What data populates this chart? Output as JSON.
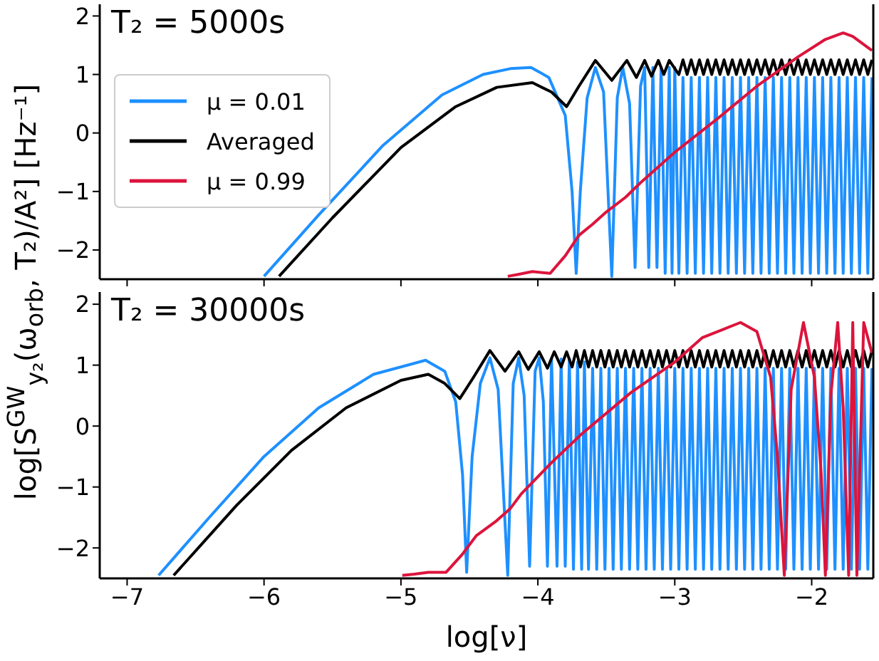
{
  "chart_data": [
    {
      "type": "line",
      "annotations": [
        "T₂ = 5000s"
      ],
      "ylabel": "log[S$^{GW}$$_{y₂}$(ω$_{orb}$, T₂)/A²] [Hz⁻¹]",
      "xlim": [
        -7.2,
        -1.55
      ],
      "ylim": [
        -2.5,
        2.2
      ],
      "xticks": [
        -7,
        -6,
        -5,
        -4,
        -3,
        -2
      ],
      "yticks": [
        -2,
        -1,
        0,
        1,
        2
      ],
      "tick_labels": "y",
      "legend": "left",
      "marker": "none",
      "line_style": "solid",
      "series": [
        {
          "name": "μ = 0.01",
          "color": "#1e90ff",
          "x": [
            -6.0,
            -5.6,
            -5.13,
            -4.7,
            -4.4,
            -4.2,
            -4.05,
            -3.92,
            -3.8,
            -3.75,
            -3.72,
            -3.69,
            -3.64,
            -3.58,
            -3.52,
            -3.46,
            -3.42,
            -3.38,
            -3.33,
            -3.29,
            -3.25,
            -3.22,
            -3.19,
            -3.16,
            -3.13,
            -3.1,
            -3.07,
            -3.04,
            -3.02,
            -3.0,
            -2.97,
            -2.94,
            -2.91,
            -2.88,
            -2.85,
            -2.82,
            -2.79,
            -2.76,
            -2.73,
            -2.7,
            -2.67,
            -2.64,
            -2.61,
            -2.58,
            -2.55,
            -2.52,
            -2.49,
            -2.46,
            -2.43,
            -2.4,
            -2.37,
            -2.34,
            -2.31,
            -2.28,
            -2.25,
            -2.22,
            -2.19,
            -2.16,
            -2.13,
            -2.1,
            -2.07,
            -2.04,
            -2.01,
            -1.98,
            -1.95,
            -1.92,
            -1.89,
            -1.86,
            -1.83,
            -1.8,
            -1.77,
            -1.74,
            -1.71,
            -1.68,
            -1.65,
            -1.62,
            -1.59,
            -1.56
          ],
          "values": [
            -2.45,
            -1.4,
            -0.21,
            0.65,
            1.0,
            1.1,
            1.12,
            0.95,
            0.3,
            -1.0,
            -2.4,
            -1.0,
            0.6,
            1.12,
            0.7,
            -2.45,
            0.6,
            1.12,
            0.5,
            -2.3,
            0.8,
            1.12,
            -2.3,
            1.12,
            -2.3,
            1.12,
            -2.4,
            1.12,
            -2.4,
            1.12,
            -2.4,
            0.95,
            -2.4,
            0.95,
            -2.4,
            0.95,
            -2.4,
            0.95,
            -2.4,
            0.95,
            -2.4,
            0.95,
            -2.4,
            0.95,
            -2.4,
            0.95,
            -2.4,
            0.95,
            -2.4,
            0.95,
            -2.4,
            0.95,
            -2.4,
            0.95,
            -2.4,
            0.95,
            -2.4,
            0.95,
            -2.4,
            0.95,
            -2.4,
            0.95,
            -2.4,
            0.95,
            -2.4,
            0.95,
            -2.4,
            0.95,
            -2.4,
            0.95,
            -2.4,
            0.95,
            -2.4,
            0.95,
            -2.4,
            0.95,
            -2.4,
            0.95
          ]
        },
        {
          "name": "Averaged",
          "color": "#000000",
          "x": [
            -5.89,
            -5.5,
            -5.0,
            -4.6,
            -4.3,
            -4.04,
            -3.9,
            -3.79,
            -3.7,
            -3.58,
            -3.46,
            -3.35,
            -3.28,
            -3.22,
            -3.17,
            -3.12,
            -3.08,
            -3.04,
            -2.97,
            -2.94,
            -2.91,
            -2.88,
            -2.85,
            -2.82,
            -2.79,
            -2.76,
            -2.73,
            -2.7,
            -2.67,
            -2.64,
            -2.61,
            -2.58,
            -2.55,
            -2.52,
            -2.49,
            -2.46,
            -2.43,
            -2.4,
            -2.37,
            -2.34,
            -2.31,
            -2.28,
            -2.25,
            -2.22,
            -2.19,
            -2.16,
            -2.13,
            -2.1,
            -2.07,
            -2.04,
            -2.01,
            -1.98,
            -1.95,
            -1.92,
            -1.89,
            -1.86,
            -1.83,
            -1.8,
            -1.77,
            -1.74,
            -1.71,
            -1.68,
            -1.65,
            -1.62,
            -1.59,
            -1.56
          ],
          "values": [
            -2.45,
            -1.45,
            -0.25,
            0.45,
            0.78,
            0.86,
            0.7,
            0.45,
            0.8,
            1.24,
            0.9,
            1.24,
            0.95,
            1.24,
            0.97,
            1.24,
            1.0,
            1.24,
            1.0,
            1.25,
            1.0,
            1.25,
            1.0,
            1.25,
            1.0,
            1.25,
            1.0,
            1.25,
            1.0,
            1.25,
            1.0,
            1.25,
            1.0,
            1.25,
            1.0,
            1.25,
            1.0,
            1.25,
            1.0,
            1.25,
            1.0,
            1.25,
            1.0,
            1.25,
            1.0,
            1.25,
            1.0,
            1.25,
            1.0,
            1.25,
            1.0,
            1.25,
            1.0,
            1.25,
            1.0,
            1.25,
            1.0,
            1.25,
            1.0,
            1.25,
            1.0,
            1.25,
            1.0,
            1.25,
            1.0,
            1.25
          ]
        },
        {
          "name": "μ = 0.99",
          "color": "#dc143c",
          "x": [
            -4.22,
            -4.15,
            -4.04,
            -3.91,
            -3.8,
            -3.7,
            -3.6,
            -3.5,
            -3.36,
            -3.25,
            -3.12,
            -3.0,
            -2.68,
            -2.4,
            -2.1,
            -1.9,
            -1.77,
            -1.7,
            -1.56
          ],
          "values": [
            -2.45,
            -2.42,
            -2.37,
            -2.4,
            -2.1,
            -1.75,
            -1.56,
            -1.35,
            -1.1,
            -0.85,
            -0.58,
            -0.33,
            0.26,
            0.8,
            1.3,
            1.6,
            1.71,
            1.65,
            1.41
          ]
        }
      ]
    },
    {
      "type": "line",
      "annotations": [
        "T₂ = 30000s"
      ],
      "xlabel": "log[ν]",
      "xlim": [
        -7.2,
        -1.55
      ],
      "ylim": [
        -2.5,
        2.2
      ],
      "xticks": [
        -7,
        -6,
        -5,
        -4,
        -3,
        -2
      ],
      "yticks": [
        -2,
        -1,
        0,
        1,
        2
      ],
      "marker": "none",
      "line_style": "solid",
      "series": [
        {
          "color": "#1e90ff",
          "x": [
            -6.77,
            -6.4,
            -6.0,
            -5.6,
            -5.2,
            -4.82,
            -4.68,
            -4.6,
            -4.55,
            -4.52,
            -4.48,
            -4.42,
            -4.35,
            -4.29,
            -4.22,
            -4.18,
            -4.14,
            -4.1,
            -4.06,
            -4.02,
            -3.99,
            -3.96,
            -3.93,
            -3.9,
            -3.86,
            -3.83,
            -3.8,
            -3.77,
            -3.74,
            -3.71,
            -3.68,
            -3.66,
            -3.63,
            -3.6,
            -3.57,
            -3.54,
            -3.51,
            -3.48,
            -3.45,
            -3.42,
            -3.39,
            -3.36,
            -3.33,
            -3.3,
            -3.27,
            -3.24,
            -3.21,
            -3.18,
            -3.15,
            -3.12,
            -3.09,
            -3.06,
            -3.03,
            -3.0,
            -2.97,
            -2.94,
            -2.91,
            -2.88,
            -2.85,
            -2.82,
            -2.79,
            -2.76,
            -2.73,
            -2.7,
            -2.67,
            -2.64,
            -2.61,
            -2.58,
            -2.55,
            -2.52,
            -2.49,
            -2.46,
            -2.43,
            -2.4,
            -2.37,
            -2.34,
            -2.31,
            -2.28,
            -2.25,
            -2.22,
            -2.19,
            -2.16,
            -2.13,
            -2.1,
            -2.07,
            -2.04,
            -2.01,
            -1.98,
            -1.95,
            -1.92,
            -1.89,
            -1.86,
            -1.83,
            -1.8,
            -1.77,
            -1.74,
            -1.71,
            -1.68,
            -1.65,
            -1.62,
            -1.59,
            -1.56
          ],
          "values": [
            -2.45,
            -1.5,
            -0.5,
            0.3,
            0.85,
            1.08,
            0.9,
            0.4,
            -0.8,
            -2.4,
            -0.5,
            0.7,
            1.12,
            0.6,
            -2.45,
            0.7,
            1.12,
            0.5,
            -2.3,
            0.9,
            1.12,
            0.4,
            -2.3,
            1.1,
            -2.3,
            1.1,
            -2.3,
            1.1,
            -2.35,
            1.05,
            -2.35,
            1.05,
            -2.35,
            0.95,
            -2.35,
            0.95,
            -2.35,
            0.95,
            -2.35,
            0.95,
            -2.35,
            0.95,
            -2.35,
            0.95,
            -2.35,
            0.95,
            -2.35,
            0.95,
            -2.35,
            0.95,
            -2.35,
            0.95,
            -2.35,
            0.95,
            -2.35,
            0.95,
            -2.35,
            0.95,
            -2.35,
            0.95,
            -2.35,
            0.95,
            -2.35,
            0.95,
            -2.35,
            0.95,
            -2.35,
            0.95,
            -2.35,
            0.95,
            -2.35,
            0.95,
            -2.35,
            0.95,
            -2.35,
            0.95,
            -2.35,
            0.95,
            -2.35,
            0.95,
            -2.35,
            0.95,
            -2.35,
            0.95,
            -2.35,
            0.95,
            -2.35,
            0.95,
            -2.35,
            0.95,
            -2.35,
            0.95,
            -2.35,
            0.95,
            -2.35,
            0.95,
            -2.35,
            0.95,
            -2.35,
            0.95,
            -2.35,
            0.95
          ]
        },
        {
          "color": "#000000",
          "x": [
            -6.66,
            -6.2,
            -5.8,
            -5.4,
            -5.0,
            -4.8,
            -4.68,
            -4.57,
            -4.47,
            -4.35,
            -4.24,
            -4.14,
            -4.07,
            -3.99,
            -3.93,
            -3.88,
            -3.83,
            -3.79,
            -3.75,
            -3.72,
            -3.69,
            -3.66,
            -3.63,
            -3.6,
            -3.57,
            -3.54,
            -3.51,
            -3.48,
            -3.45,
            -3.42,
            -3.39,
            -3.36,
            -3.33,
            -3.3,
            -3.27,
            -3.24,
            -3.21,
            -3.18,
            -3.15,
            -3.12,
            -3.09,
            -3.06,
            -3.03,
            -3.0,
            -2.97,
            -2.94,
            -2.91,
            -2.88,
            -2.85,
            -2.82,
            -2.79,
            -2.76,
            -2.73,
            -2.7,
            -2.67,
            -2.64,
            -2.61,
            -2.58,
            -2.55,
            -2.52,
            -2.49,
            -2.46,
            -2.43,
            -2.4,
            -2.37,
            -2.34,
            -2.31,
            -2.28,
            -2.25,
            -2.22,
            -2.19,
            -2.16,
            -2.13,
            -2.1,
            -2.07,
            -2.04,
            -2.01,
            -1.98,
            -1.95,
            -1.92,
            -1.89,
            -1.86,
            -1.83,
            -1.8,
            -1.77,
            -1.74,
            -1.71,
            -1.68,
            -1.65,
            -1.62,
            -1.59,
            -1.56
          ],
          "values": [
            -2.45,
            -1.3,
            -0.4,
            0.3,
            0.75,
            0.85,
            0.7,
            0.45,
            0.8,
            1.24,
            0.9,
            1.22,
            0.93,
            1.22,
            0.95,
            1.22,
            0.97,
            1.22,
            0.97,
            1.24,
            0.97,
            1.24,
            0.97,
            1.24,
            0.97,
            1.24,
            0.97,
            1.24,
            0.97,
            1.24,
            0.97,
            1.24,
            0.97,
            1.24,
            0.97,
            1.24,
            0.97,
            1.24,
            0.97,
            1.24,
            0.97,
            1.24,
            0.97,
            1.24,
            0.97,
            1.24,
            0.97,
            1.24,
            0.97,
            1.24,
            0.97,
            1.24,
            0.97,
            1.24,
            0.97,
            1.24,
            0.97,
            1.24,
            0.97,
            1.24,
            0.97,
            1.24,
            0.97,
            1.24,
            0.97,
            1.24,
            0.97,
            1.24,
            0.97,
            1.24,
            0.97,
            1.24,
            0.97,
            1.24,
            0.97,
            1.24,
            0.97,
            1.24,
            0.97,
            1.24,
            0.97,
            1.24,
            0.97,
            1.24,
            0.97,
            1.24,
            0.97,
            1.24,
            0.97,
            1.24,
            0.97,
            1.24
          ]
        },
        {
          "color": "#dc143c",
          "x": [
            -4.99,
            -4.9,
            -4.8,
            -4.67,
            -4.55,
            -4.45,
            -4.31,
            -4.2,
            -4.12,
            -3.9,
            -3.68,
            -3.32,
            -3.0,
            -2.8,
            -2.52,
            -2.4,
            -2.3,
            -2.25,
            -2.2,
            -2.15,
            -2.06,
            -1.98,
            -1.93,
            -1.9,
            -1.86,
            -1.81,
            -1.77,
            -1.73,
            -1.7,
            -1.67,
            -1.62,
            -1.56
          ],
          "values": [
            -2.45,
            -2.43,
            -2.4,
            -2.4,
            -2.1,
            -1.8,
            -1.57,
            -1.35,
            -1.11,
            -0.6,
            -0.13,
            0.55,
            1.05,
            1.45,
            1.7,
            1.55,
            0.8,
            -0.5,
            -2.45,
            0.6,
            1.7,
            0.8,
            -0.8,
            -2.45,
            0.5,
            1.7,
            0.3,
            -2.45,
            1.7,
            -2.45,
            1.7,
            1.2
          ]
        }
      ]
    }
  ]
}
